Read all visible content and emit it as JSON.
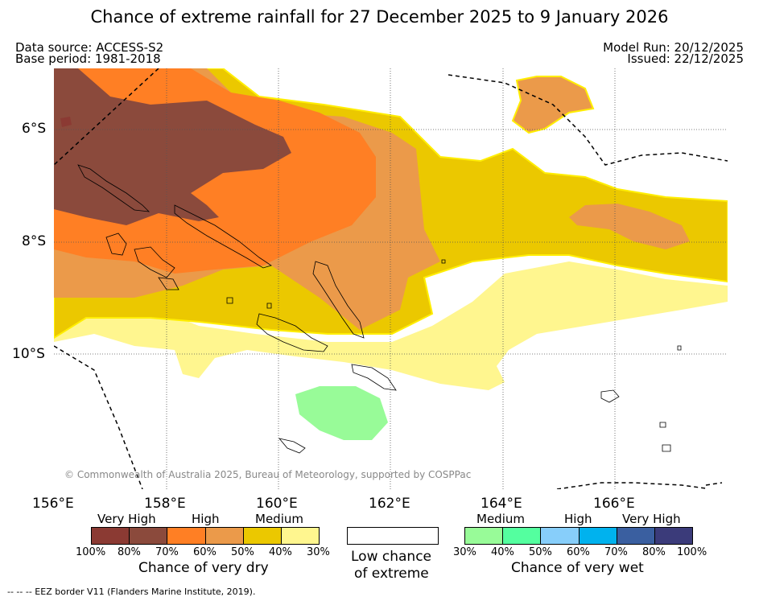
{
  "title": "Chance of extreme rainfall for 27 December 2025 to 9 January 2026",
  "meta_left": [
    "Data source: ACCESS-S2",
    "Base period: 1981-2018"
  ],
  "meta_right": [
    "Model Run: 20/12/2025",
    "Issued: 22/12/2025"
  ],
  "lat_labels": [
    "6°S",
    "8°S",
    "10°S"
  ],
  "lon_labels": [
    "156°E",
    "158°E",
    "160°E",
    "162°E",
    "164°E",
    "166°E"
  ],
  "copyright": "© Commonwealth of Australia 2025, Bureau of Meteorology, supported by COSPPac",
  "dry_legend": {
    "headers": [
      "Very High",
      "High",
      "Medium"
    ],
    "ticks": [
      "100%",
      "80%",
      "70%",
      "60%",
      "50%",
      "40%",
      "30%"
    ],
    "colors": [
      "#8b3a33",
      "#8b4a3c",
      "#ff7f24",
      "#eb9a4a",
      "#ebc800",
      "#fff68f"
    ],
    "label": "Chance of very dry"
  },
  "low_legend": {
    "lines": [
      "Low chance",
      "of extreme"
    ]
  },
  "wet_legend": {
    "headers": [
      "Medium",
      "High",
      "Very High"
    ],
    "ticks": [
      "30%",
      "40%",
      "50%",
      "60%",
      "70%",
      "80%",
      "100%"
    ],
    "colors": [
      "#98fb98",
      "#54ff9f",
      "#87cefa",
      "#00b2ee",
      "#3a5fa0",
      "#3b3b7a"
    ],
    "label": "Chance of very wet"
  },
  "footer": "-- -- -- EEZ border V11 (Flanders Marine Institute, 2019).",
  "colors": {
    "very_dry_dark": "#8b4a3c",
    "very_dry_orange": "#ff7f24",
    "dry_light_orange": "#eb9a4a",
    "dry_yellow": "#ebc800",
    "dry_pale": "#fff68f",
    "wet_green": "#98fb98"
  }
}
